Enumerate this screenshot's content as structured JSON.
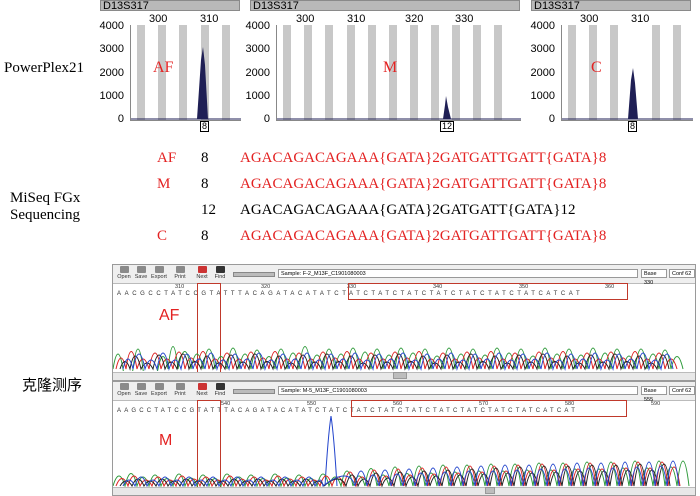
{
  "labels": {
    "powerplex": "PowerPlex21",
    "miseq_line1": "MiSeq FGx",
    "miseq_line2": "Sequencing",
    "clone": "克隆测序"
  },
  "panels": [
    {
      "locus": "D13S317",
      "ticks": [
        "300",
        "310"
      ],
      "yticks": [
        "4000",
        "3000",
        "2000",
        "1000",
        "0"
      ],
      "tag": "AF",
      "allele": "8"
    },
    {
      "locus": "D13S317",
      "ticks": [
        "300",
        "310",
        "320",
        "330"
      ],
      "yticks": [
        "4000",
        "3000",
        "2000",
        "1000",
        "0"
      ],
      "tag": "M",
      "allele": "12"
    },
    {
      "locus": "D13S317",
      "ticks": [
        "300",
        "310"
      ],
      "yticks": [
        "4000",
        "3000",
        "2000",
        "1000",
        "0"
      ],
      "tag": "C",
      "allele": "8"
    }
  ],
  "seq_rows": [
    {
      "name": "AF",
      "count": "8",
      "seq": "AGACAGACAGAAA{GATA}2GATGATTGATT{GATA}8",
      "color": "#e32222"
    },
    {
      "name": "M",
      "count": "8",
      "seq": "AGACAGACAGAAA{GATA}2GATGATTGATT{GATA}8",
      "color": "#e32222"
    },
    {
      "name": "",
      "count": "12",
      "seq": "AGACAGACAGAAA{GATA}2GATGATT{GATA}12",
      "color": "#000000"
    },
    {
      "name": "C",
      "count": "8",
      "seq": "AGACAGACAGAAA{GATA}2GATGATTGATT{GATA}8",
      "color": "#e32222"
    }
  ],
  "windows": [
    {
      "toolbar": [
        "Open",
        "Save",
        "Export",
        "Print",
        "Next",
        "Find"
      ],
      "sample": "Sample: F-2_M13F_C1901080003",
      "base": "Base 330",
      "conf": "Conf 62",
      "ruler": [
        "310",
        "320",
        "330",
        "340",
        "350",
        "360"
      ],
      "bases": "AACGCCTATCCGTATTTACAGATACATATCTATCTATCTATCTATCTATCTATCTATCATCAT",
      "tag": "AF"
    },
    {
      "toolbar": [
        "Open",
        "Save",
        "Export",
        "Print",
        "Next",
        "Find"
      ],
      "sample": "Sample: M-5_M13F_C1901080003",
      "base": "Base 555",
      "conf": "Conf 62",
      "ruler": [
        "540",
        "550",
        "560",
        "570",
        "580",
        "590"
      ],
      "bases": "AAGCCTATCCGTATTTACAGATACATATCTATCTATCTATCTATCTATCTATCTATCTATCATCAT",
      "tag": "M"
    }
  ],
  "colors": {
    "accent_red": "#e32222",
    "peak_fill": "#1f1f55"
  }
}
